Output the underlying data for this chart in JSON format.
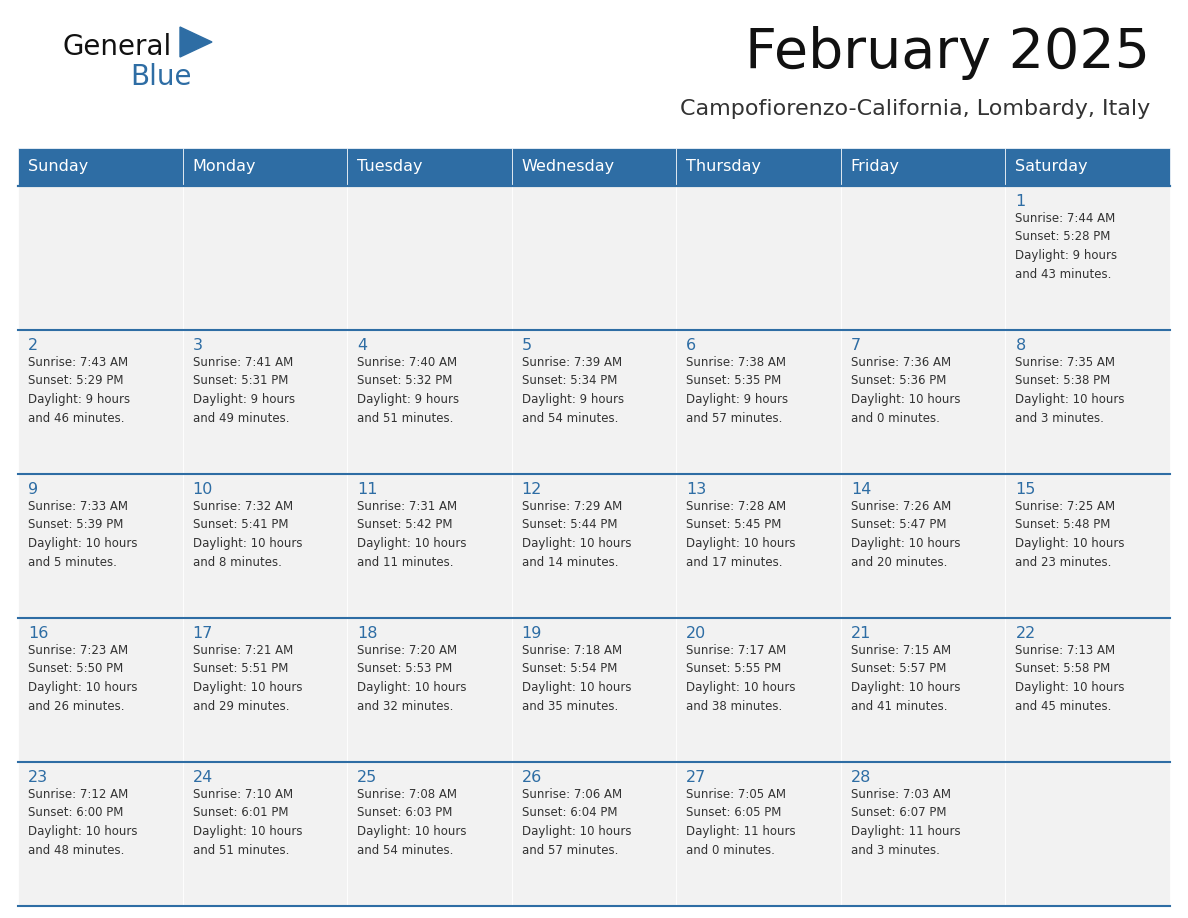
{
  "title": "February 2025",
  "subtitle": "Campofiorenzo-California, Lombardy, Italy",
  "header_bg": "#2E6DA4",
  "header_text_color": "#FFFFFF",
  "cell_bg": "#F2F2F2",
  "day_number_color": "#2E6DA4",
  "text_color": "#333333",
  "line_color": "#2E6DA4",
  "days_of_week": [
    "Sunday",
    "Monday",
    "Tuesday",
    "Wednesday",
    "Thursday",
    "Friday",
    "Saturday"
  ],
  "weeks": [
    [
      {
        "day": null,
        "info": null
      },
      {
        "day": null,
        "info": null
      },
      {
        "day": null,
        "info": null
      },
      {
        "day": null,
        "info": null
      },
      {
        "day": null,
        "info": null
      },
      {
        "day": null,
        "info": null
      },
      {
        "day": 1,
        "info": "Sunrise: 7:44 AM\nSunset: 5:28 PM\nDaylight: 9 hours\nand 43 minutes."
      }
    ],
    [
      {
        "day": 2,
        "info": "Sunrise: 7:43 AM\nSunset: 5:29 PM\nDaylight: 9 hours\nand 46 minutes."
      },
      {
        "day": 3,
        "info": "Sunrise: 7:41 AM\nSunset: 5:31 PM\nDaylight: 9 hours\nand 49 minutes."
      },
      {
        "day": 4,
        "info": "Sunrise: 7:40 AM\nSunset: 5:32 PM\nDaylight: 9 hours\nand 51 minutes."
      },
      {
        "day": 5,
        "info": "Sunrise: 7:39 AM\nSunset: 5:34 PM\nDaylight: 9 hours\nand 54 minutes."
      },
      {
        "day": 6,
        "info": "Sunrise: 7:38 AM\nSunset: 5:35 PM\nDaylight: 9 hours\nand 57 minutes."
      },
      {
        "day": 7,
        "info": "Sunrise: 7:36 AM\nSunset: 5:36 PM\nDaylight: 10 hours\nand 0 minutes."
      },
      {
        "day": 8,
        "info": "Sunrise: 7:35 AM\nSunset: 5:38 PM\nDaylight: 10 hours\nand 3 minutes."
      }
    ],
    [
      {
        "day": 9,
        "info": "Sunrise: 7:33 AM\nSunset: 5:39 PM\nDaylight: 10 hours\nand 5 minutes."
      },
      {
        "day": 10,
        "info": "Sunrise: 7:32 AM\nSunset: 5:41 PM\nDaylight: 10 hours\nand 8 minutes."
      },
      {
        "day": 11,
        "info": "Sunrise: 7:31 AM\nSunset: 5:42 PM\nDaylight: 10 hours\nand 11 minutes."
      },
      {
        "day": 12,
        "info": "Sunrise: 7:29 AM\nSunset: 5:44 PM\nDaylight: 10 hours\nand 14 minutes."
      },
      {
        "day": 13,
        "info": "Sunrise: 7:28 AM\nSunset: 5:45 PM\nDaylight: 10 hours\nand 17 minutes."
      },
      {
        "day": 14,
        "info": "Sunrise: 7:26 AM\nSunset: 5:47 PM\nDaylight: 10 hours\nand 20 minutes."
      },
      {
        "day": 15,
        "info": "Sunrise: 7:25 AM\nSunset: 5:48 PM\nDaylight: 10 hours\nand 23 minutes."
      }
    ],
    [
      {
        "day": 16,
        "info": "Sunrise: 7:23 AM\nSunset: 5:50 PM\nDaylight: 10 hours\nand 26 minutes."
      },
      {
        "day": 17,
        "info": "Sunrise: 7:21 AM\nSunset: 5:51 PM\nDaylight: 10 hours\nand 29 minutes."
      },
      {
        "day": 18,
        "info": "Sunrise: 7:20 AM\nSunset: 5:53 PM\nDaylight: 10 hours\nand 32 minutes."
      },
      {
        "day": 19,
        "info": "Sunrise: 7:18 AM\nSunset: 5:54 PM\nDaylight: 10 hours\nand 35 minutes."
      },
      {
        "day": 20,
        "info": "Sunrise: 7:17 AM\nSunset: 5:55 PM\nDaylight: 10 hours\nand 38 minutes."
      },
      {
        "day": 21,
        "info": "Sunrise: 7:15 AM\nSunset: 5:57 PM\nDaylight: 10 hours\nand 41 minutes."
      },
      {
        "day": 22,
        "info": "Sunrise: 7:13 AM\nSunset: 5:58 PM\nDaylight: 10 hours\nand 45 minutes."
      }
    ],
    [
      {
        "day": 23,
        "info": "Sunrise: 7:12 AM\nSunset: 6:00 PM\nDaylight: 10 hours\nand 48 minutes."
      },
      {
        "day": 24,
        "info": "Sunrise: 7:10 AM\nSunset: 6:01 PM\nDaylight: 10 hours\nand 51 minutes."
      },
      {
        "day": 25,
        "info": "Sunrise: 7:08 AM\nSunset: 6:03 PM\nDaylight: 10 hours\nand 54 minutes."
      },
      {
        "day": 26,
        "info": "Sunrise: 7:06 AM\nSunset: 6:04 PM\nDaylight: 10 hours\nand 57 minutes."
      },
      {
        "day": 27,
        "info": "Sunrise: 7:05 AM\nSunset: 6:05 PM\nDaylight: 11 hours\nand 0 minutes."
      },
      {
        "day": 28,
        "info": "Sunrise: 7:03 AM\nSunset: 6:07 PM\nDaylight: 11 hours\nand 3 minutes."
      },
      {
        "day": null,
        "info": null
      }
    ]
  ]
}
